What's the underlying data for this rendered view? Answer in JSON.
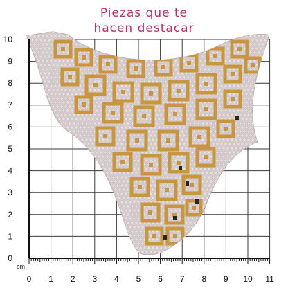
{
  "caption": {
    "line1": "Piezas que te",
    "line2": "hacen destacar",
    "color": "#b5306d"
  },
  "scale": {
    "unit_label": "cm",
    "x_ticks": [
      "0",
      "1",
      "2",
      "3",
      "4",
      "5",
      "6",
      "7",
      "8",
      "9",
      "10",
      "11"
    ],
    "y_ticks": [
      "0",
      "1",
      "2",
      "3",
      "4",
      "5",
      "6",
      "7",
      "8",
      "9",
      "10"
    ]
  },
  "product": {
    "name": "rhinestone-collar-applique",
    "gold_color": "#c8963e",
    "stone_color": "#e6e2df",
    "base_color": "#d9cdd2",
    "dark_stone_color": "#2a2320"
  }
}
